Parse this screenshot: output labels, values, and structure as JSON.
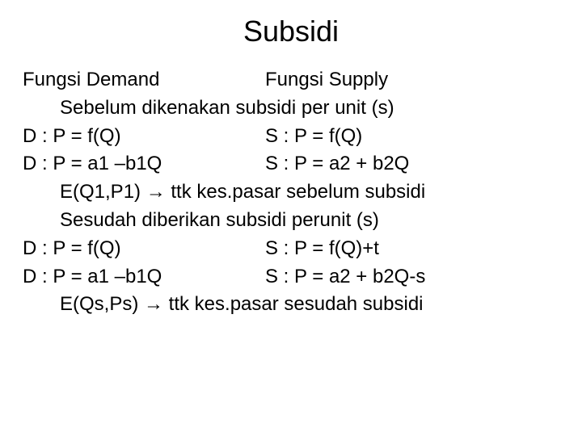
{
  "title": "Subsidi",
  "r1_left": "Fungsi Demand",
  "r1_right": "Fungsi Supply",
  "r2": "Sebelum dikenakan subsidi per unit (s)",
  "r3_left": "D : P = f(Q)",
  "r3_right": "S : P = f(Q)",
  "r4_left": "D : P = a1 –b1Q",
  "r4_right": " S : P = a2 + b2Q",
  "r5": "E(Q1,P1) → ttk kes.pasar sebelum subsidi",
  "r6": "Sesudah diberikan subsidi perunit (s)",
  "r7_left": "D : P = f(Q)",
  "r7_right": "S : P = f(Q)+t",
  "r8_left": "D : P = a1 –b1Q",
  "r8_right": " S : P = a2 + b2Q-s",
  "r9": "E(Qs,Ps) → ttk kes.pasar sesudah subsidi",
  "colors": {
    "background": "#ffffff",
    "text": "#000000"
  },
  "typography": {
    "title_fontsize_pt": 27,
    "body_fontsize_pt": 18,
    "font_family": "Arial"
  }
}
